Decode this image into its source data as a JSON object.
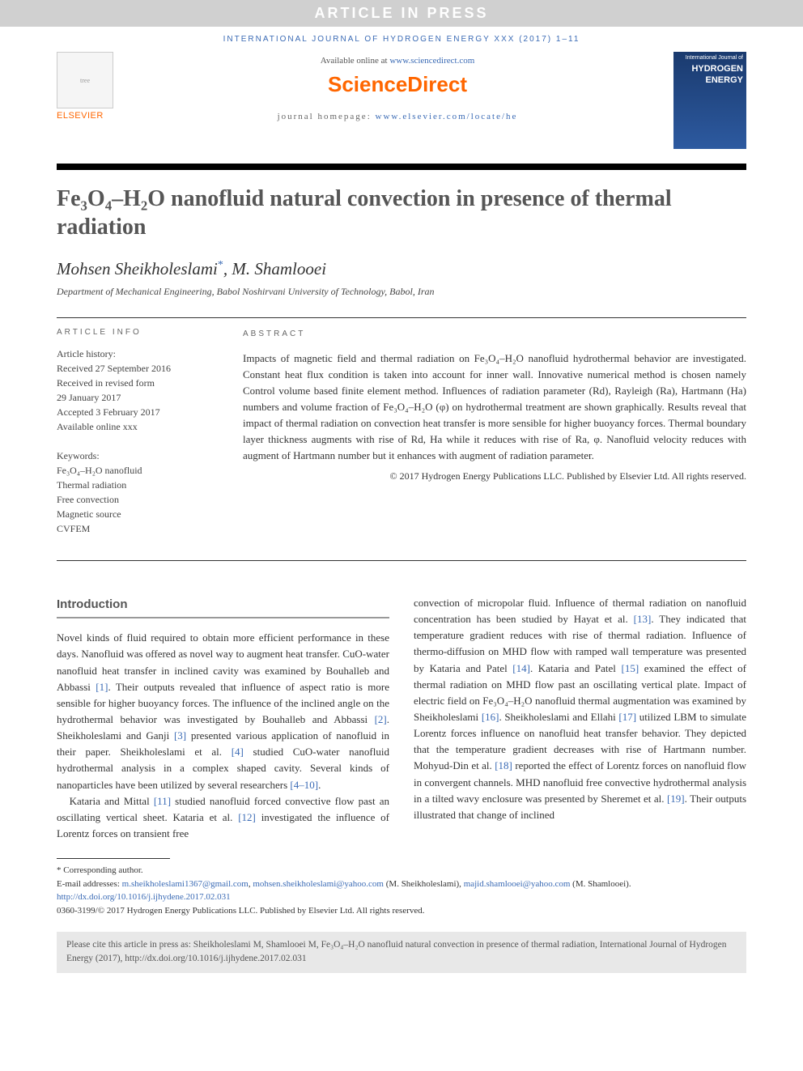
{
  "banner": "ARTICLE IN PRESS",
  "journal_line": "INTERNATIONAL JOURNAL OF HYDROGEN ENERGY XXX (2017) 1–11",
  "header": {
    "available_pre": "Available online at ",
    "available_link": "www.sciencedirect.com",
    "sd_logo": "ScienceDirect",
    "homepage_pre": "journal homepage: ",
    "homepage_link": "www.elsevier.com/locate/he",
    "elsevier": "ELSEVIER",
    "cover_top": "International Journal of",
    "cover_main": "HYDROGEN ENERGY"
  },
  "title": "Fe₃O₄–H₂O nanofluid natural convection in presence of thermal radiation",
  "authors_html": "Mohsen Sheikholeslami",
  "author2": ", M. Shamlooei",
  "affiliation": "Department of Mechanical Engineering, Babol Noshirvani University of Technology, Babol, Iran",
  "info": {
    "head": "ARTICLE INFO",
    "history_label": "Article history:",
    "received": "Received 27 September 2016",
    "revised1": "Received in revised form",
    "revised2": "29 January 2017",
    "accepted": "Accepted 3 February 2017",
    "online": "Available online xxx",
    "kw_label": "Keywords:",
    "kw1": "Fe₃O₄–H₂O nanofluid",
    "kw2": "Thermal radiation",
    "kw3": "Free convection",
    "kw4": "Magnetic source",
    "kw5": "CVFEM"
  },
  "abstract": {
    "head": "ABSTRACT",
    "body": "Impacts of magnetic field and thermal radiation on Fe₃O₄–H₂O nanofluid hydrothermal behavior are investigated. Constant heat flux condition is taken into account for inner wall. Innovative numerical method is chosen namely Control volume based finite element method. Influences of radiation parameter (Rd), Rayleigh (Ra), Hartmann (Ha) numbers and volume fraction of Fe₃O₄–H₂O (φ) on hydrothermal treatment are shown graphically. Results reveal that impact of thermal radiation on convection heat transfer is more sensible for higher buoyancy forces. Thermal boundary layer thickness augments with rise of Rd, Ha while it reduces with rise of Ra, φ. Nanofluid velocity reduces with augment of Hartmann number but it enhances with augment of radiation parameter.",
    "copyright": "© 2017 Hydrogen Energy Publications LLC. Published by Elsevier Ltd. All rights reserved."
  },
  "intro": {
    "title": "Introduction",
    "p1a": "Novel kinds of fluid required to obtain more efficient performance in these days. Nanofluid was offered as novel way to augment heat transfer. CuO-water nanofluid heat transfer in inclined cavity was examined by Bouhalleb and Abbassi ",
    "r1": "[1]",
    "p1b": ". Their outputs revealed that influence of aspect ratio is more sensible for higher buoyancy forces. The influence of the inclined angle on the hydrothermal behavior was investigated by Bouhalleb and Abbassi ",
    "r2": "[2]",
    "p1c": ". Sheikholeslami and Ganji ",
    "r3": "[3]",
    "p1d": " presented various application of nanofluid in their paper. Sheikholeslami et al. ",
    "r4": "[4]",
    "p1e": " studied CuO-water nanofluid hydrothermal analysis in a complex shaped cavity. Several kinds of nanoparticles have been utilized by several researchers ",
    "r410": "[4–10]",
    "p1f": ".",
    "p2a": "Kataria and Mittal ",
    "r11": "[11]",
    "p2b": " studied nanofluid forced convective flow past an oscillating vertical sheet. Kataria et al. ",
    "r12": "[12]",
    "p2c": " investigated the influence of Lorentz forces on transient free",
    "col2a": "convection of micropolar fluid. Influence of thermal radiation on nanofluid concentration has been studied by Hayat et al. ",
    "r13": "[13]",
    "col2b": ". They indicated that temperature gradient reduces with rise of thermal radiation. Influence of thermo-diffusion on MHD flow with ramped wall temperature was presented by Kataria and Patel ",
    "r14": "[14]",
    "col2c": ". Kataria and Patel ",
    "r15": "[15]",
    "col2d": " examined the effect of thermal radiation on MHD flow past an oscillating vertical plate. Impact of electric field on Fe₃O₄–H₂O nanofluid thermal augmentation was examined by Sheikholeslami ",
    "r16": "[16]",
    "col2e": ". Sheikholeslami and Ellahi ",
    "r17": "[17]",
    "col2f": " utilized LBM to simulate Lorentz forces influence on nanofluid heat transfer behavior. They depicted that the temperature gradient decreases with rise of Hartmann number. Mohyud-Din et al. ",
    "r18": "[18]",
    "col2g": " reported the effect of Lorentz forces on nanofluid flow in convergent channels. MHD nanofluid free convective hydrothermal analysis in a tilted wavy enclosure was presented by Sheremet et al. ",
    "r19": "[19]",
    "col2h": ". Their outputs illustrated that change of inclined"
  },
  "foot": {
    "corr": "* Corresponding author.",
    "email_label": "E-mail addresses: ",
    "e1": "m.sheikholeslami1367@gmail.com",
    "e1sep": ", ",
    "e2": "mohsen.sheikholeslami@yahoo.com",
    "e2tail": " (M. Sheikholeslami), ",
    "e3": "majid.shamlooei@yahoo.com",
    "e3tail": " (M. Shamlooei).",
    "doi": "http://dx.doi.org/10.1016/j.ijhydene.2017.02.031",
    "issn": "0360-3199/© 2017 Hydrogen Energy Publications LLC. Published by Elsevier Ltd. All rights reserved."
  },
  "citebox": "Please cite this article in press as: Sheikholeslami M, Shamlooei M, Fe₃O₄–H₂O nanofluid natural convection in presence of thermal radiation, International Journal of Hydrogen Energy (2017), http://dx.doi.org/10.1016/j.ijhydene.2017.02.031"
}
